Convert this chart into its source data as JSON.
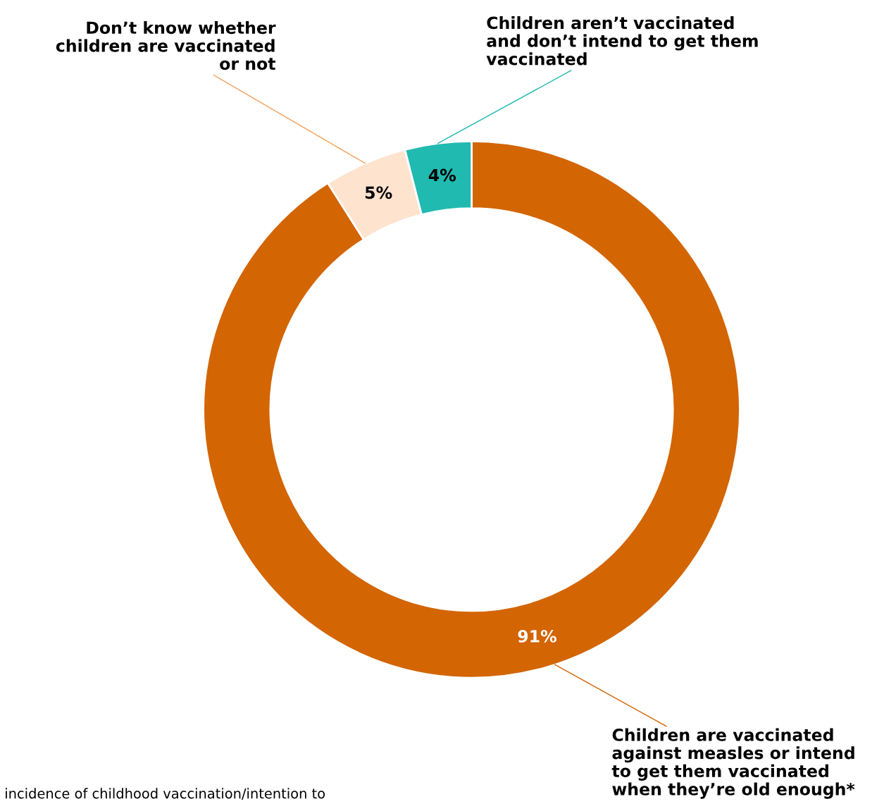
{
  "chart_data": {
    "type": "donut",
    "categories": [
      "Children are vaccinated against measles or intend to get them vaccinated when they’re old enough*",
      "Don’t know whether children are vaccinated or not",
      "Children aren’t vaccinated and don’t intend to get them vaccinated"
    ],
    "values": [
      91,
      5,
      4
    ],
    "colors": [
      "#d36503",
      "#fee3cf",
      "#20bab0"
    ],
    "value_labels": [
      "91%",
      "5%",
      "4%"
    ],
    "annotations": [
      "incidence of childhood vaccination/intention to"
    ],
    "legend": false
  }
}
